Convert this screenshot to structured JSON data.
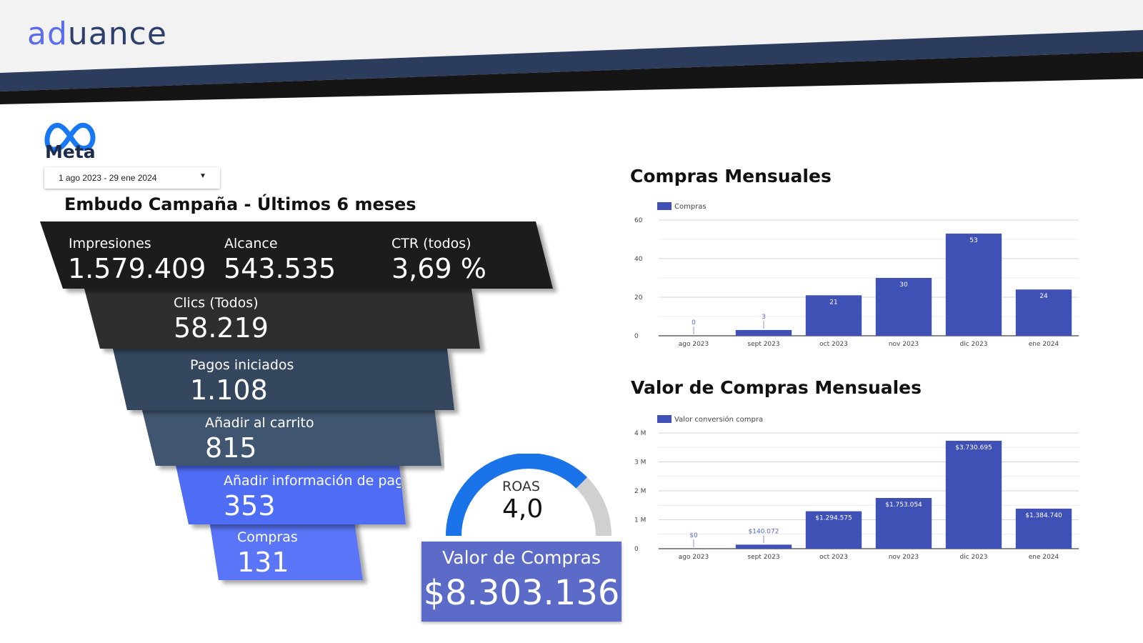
{
  "header": {
    "logo_part1": "ad",
    "logo_part2": "uance"
  },
  "meta_logo_text": "Meta",
  "date_range": {
    "value": "1 ago 2023 - 29 ene 2024"
  },
  "funnel": {
    "title": "Embudo Campaña - Últimos 6 meses",
    "impresiones": {
      "label": "Impresiones",
      "value": "1.579.409"
    },
    "alcance": {
      "label": "Alcance",
      "value": "543.535"
    },
    "ctr": {
      "label": "CTR (todos)",
      "value": "3,69 %"
    },
    "clics": {
      "label": "Clics (Todos)",
      "value": "58.219"
    },
    "pagos": {
      "label": "Pagos iniciados",
      "value": "1.108"
    },
    "carrito": {
      "label": "Añadir al carrito",
      "value": "815"
    },
    "info_pago": {
      "label": "Añadir información de pag",
      "value": "353"
    },
    "compras": {
      "label": "Compras",
      "value": "131"
    },
    "colors": [
      "#1c1c1c",
      "#2d2d2d",
      "#34475e",
      "#40576f",
      "#4f6cf5",
      "#5a74f7"
    ]
  },
  "roas": {
    "label": "ROAS",
    "value": "4,0",
    "fill_fraction": 0.75,
    "colors": {
      "fill": "#1a73e8",
      "track": "#d0d0d0"
    }
  },
  "purchase_value": {
    "label": "Valor de Compras",
    "value": "$8.303.136"
  },
  "charts": {
    "compras": {
      "title": "Compras Mensuales",
      "legend": "Compras"
    },
    "valor": {
      "title": "Valor de Compras Mensuales",
      "legend": "Valor conversión compra"
    }
  },
  "chart_data": [
    {
      "type": "bar",
      "title": "Compras Mensuales",
      "categories": [
        "ago 2023",
        "sept 2023",
        "oct 2023",
        "nov 2023",
        "dic 2023",
        "ene 2024"
      ],
      "series": [
        {
          "name": "Compras",
          "values": [
            0,
            3,
            21,
            30,
            53,
            24
          ]
        }
      ],
      "data_labels": [
        "0",
        "3",
        "21",
        "30",
        "53",
        "24"
      ],
      "yticks": [
        "0",
        "20",
        "40",
        "60"
      ],
      "ylim": [
        0,
        60
      ],
      "grid": true,
      "legend": "top-left",
      "color": "#3f51b5"
    },
    {
      "type": "bar",
      "title": "Valor de Compras Mensuales",
      "categories": [
        "ago 2023",
        "sept 2023",
        "oct 2023",
        "nov 2023",
        "dic 2023",
        "ene 2024"
      ],
      "series": [
        {
          "name": "Valor conversión compra",
          "values": [
            0,
            140072,
            1294575,
            1753054,
            3730695,
            1384740
          ]
        }
      ],
      "data_labels": [
        "$0",
        "$140.072",
        "$1.294.575",
        "$1.753.054",
        "$3.730.695",
        "$1.384.740"
      ],
      "yticks": [
        "0",
        "1 M",
        "2 M",
        "3 M",
        "4 M"
      ],
      "ylim": [
        0,
        4000000
      ],
      "grid": true,
      "legend": "top-left",
      "color": "#3f51b5"
    }
  ]
}
